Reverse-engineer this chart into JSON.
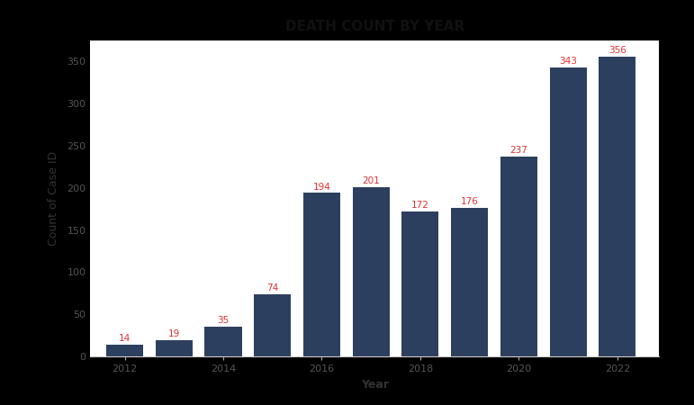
{
  "years": [
    2012,
    2013,
    2014,
    2015,
    2016,
    2017,
    2018,
    2019,
    2020,
    2021,
    2022
  ],
  "values": [
    14,
    19,
    35,
    74,
    194,
    201,
    172,
    176,
    237,
    343,
    356
  ],
  "bar_color": "#2d3f5e",
  "label_color": "#e03030",
  "title": "DEATH COUNT BY YEAR",
  "xlabel": "Year",
  "ylabel": "Count of Case ID",
  "chart_bg": "#ffffff",
  "outer_bg": "#000000",
  "ylim": [
    0,
    375
  ],
  "yticks": [
    0,
    50,
    100,
    150,
    200,
    250,
    300,
    350
  ],
  "title_fontsize": 11,
  "label_fontsize": 7.5,
  "axis_label_fontsize": 9,
  "tick_fontsize": 8,
  "bar_width": 0.75
}
